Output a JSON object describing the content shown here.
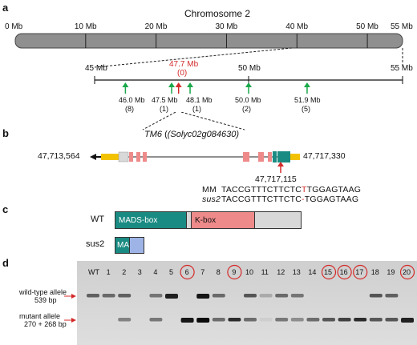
{
  "panels": {
    "a": "a",
    "b": "b",
    "c": "c",
    "d": "d"
  },
  "chromosome": {
    "title": "Chromosome 2",
    "ticks": [
      "0 Mb",
      "10 Mb",
      "20 Mb",
      "30 Mb",
      "40 Mb",
      "50 Mb",
      "55 Mb"
    ],
    "tick_values": [
      0,
      10,
      20,
      30,
      40,
      50,
      55
    ]
  },
  "zoom": {
    "left": "45 Mb",
    "mid": "50 Mb",
    "right": "55 Mb",
    "candidate": {
      "pos": "47.7 Mb",
      "count": "(0)"
    },
    "markers": [
      {
        "pos": "46.0 Mb",
        "count": "(8)"
      },
      {
        "pos": "47.5 Mb",
        "count": "(1)"
      },
      {
        "pos": "48.1 Mb",
        "count": "(1)"
      },
      {
        "pos": "50.0 Mb",
        "count": "(2)"
      },
      {
        "pos": "51.9 Mb",
        "count": "(5)"
      }
    ]
  },
  "gene": {
    "name": "TM6",
    "locus": "(Solyc02g084630)",
    "left_coord": "47,713,564",
    "right_coord": "47,717,330",
    "mutation_coord": "47,717,115"
  },
  "sequences": {
    "mm_label": "MM",
    "mm_seq_a": "TACCGTTTCTTCTC",
    "mm_seq_b": "T",
    "mm_seq_c": "TGGAGTAAG",
    "sus2_label": "sus2",
    "sus2_seq_a": "TACCGTTTCTTCTC",
    "sus2_seq_b": "-",
    "sus2_seq_c": "TGGAGTAAG"
  },
  "protein": {
    "wt_label": "WT",
    "mads": "MADS-box",
    "kbox": "K-box",
    "sus2_label": "sus2",
    "ma": "MA"
  },
  "gel": {
    "lanes": [
      "WT",
      "1",
      "2",
      "3",
      "4",
      "5",
      "6",
      "7",
      "8",
      "9",
      "10",
      "11",
      "12",
      "13",
      "14",
      "15",
      "16",
      "17",
      "18",
      "19",
      "20"
    ],
    "circled": [
      "6",
      "9",
      "15",
      "16",
      "17",
      "20"
    ],
    "wt_allele": "wild-type allele",
    "wt_size": "539 bp",
    "mut_allele": "mutant allele",
    "mut_size": "270 + 268 bp"
  },
  "colors": {
    "gold": "#f2c200",
    "pink": "#ee8a8a",
    "teal": "#1a8b82",
    "grey": "#d8d8d8",
    "blue": "#9fb4e6",
    "green": "#1aa84a",
    "red": "#d42a2a"
  }
}
